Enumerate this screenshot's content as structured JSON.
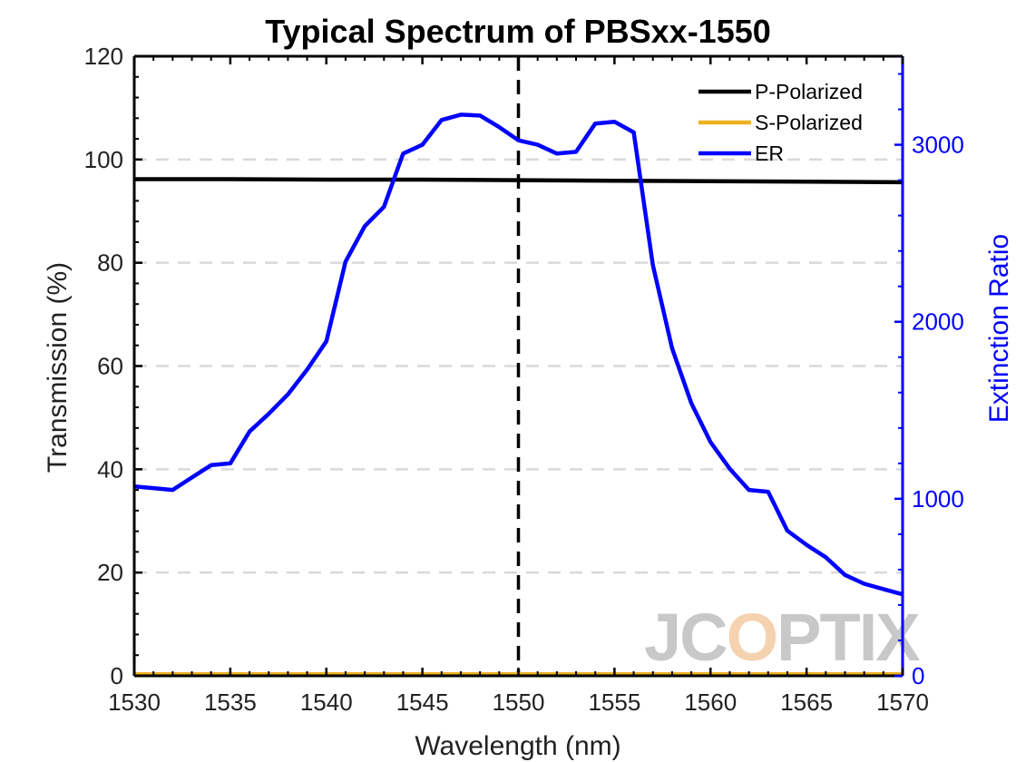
{
  "chart_data": {
    "type": "line",
    "title": "Typical Spectrum of PBSxx-1550",
    "xlabel": "Wavelength (nm)",
    "ylabel": "Transmission (%)",
    "y2label": "Extinction Ratio",
    "xlim": [
      1530,
      1570
    ],
    "ylim": [
      0,
      120
    ],
    "y2lim": [
      0,
      3500
    ],
    "xticks": [
      "1530",
      "1535",
      "1540",
      "1545",
      "1550",
      "1555",
      "1560",
      "1565",
      "1570"
    ],
    "yticks": [
      "0",
      "20",
      "40",
      "60",
      "80",
      "100",
      "120"
    ],
    "y2ticks": [
      "0",
      "1000",
      "2000",
      "3000"
    ],
    "grid": "horizontal dashed",
    "legend_position": "top-right",
    "reference_line_x": 1550,
    "series": [
      {
        "name": "P-Polarized",
        "axis": "left",
        "color": "#000000",
        "x": [
          1530,
          1535,
          1540,
          1545,
          1550,
          1555,
          1560,
          1565,
          1570
        ],
        "y": [
          96.2,
          96.2,
          96.1,
          96.1,
          96.0,
          95.9,
          95.8,
          95.7,
          95.6
        ]
      },
      {
        "name": "S-Polarized",
        "axis": "left",
        "color": "#edb120",
        "x": [
          1530,
          1535,
          1540,
          1545,
          1550,
          1555,
          1560,
          1565,
          1570
        ],
        "y": [
          0.3,
          0.3,
          0.3,
          0.3,
          0.3,
          0.3,
          0.3,
          0.3,
          0.3
        ]
      },
      {
        "name": "ER",
        "axis": "right",
        "color": "#0000ff",
        "x": [
          1530,
          1531,
          1532,
          1533,
          1534,
          1535,
          1536,
          1537,
          1538,
          1539,
          1540,
          1541,
          1542,
          1543,
          1544,
          1545,
          1546,
          1547,
          1548,
          1549,
          1550,
          1551,
          1552,
          1553,
          1554,
          1555,
          1556,
          1557,
          1558,
          1559,
          1560,
          1561,
          1562,
          1563,
          1564,
          1565,
          1566,
          1567,
          1568,
          1569,
          1570
        ],
        "y": [
          1070,
          1060,
          1050,
          1120,
          1190,
          1200,
          1380,
          1480,
          1590,
          1730,
          1890,
          2340,
          2540,
          2650,
          2950,
          3000,
          3140,
          3170,
          3165,
          3100,
          3025,
          3000,
          2950,
          2960,
          3120,
          3130,
          3070,
          2320,
          1850,
          1540,
          1320,
          1170,
          1050,
          1040,
          820,
          740,
          670,
          570,
          520,
          490,
          460
        ]
      }
    ]
  },
  "watermark": {
    "text": "JCOPTIX",
    "color": "#c8c8c8",
    "accent_color": "#f5d2b0"
  }
}
